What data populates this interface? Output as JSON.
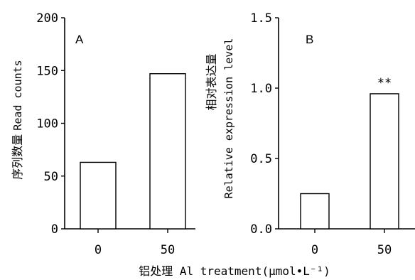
{
  "xlabel": "铝处理 Al treatment(μmol•L⁻¹)",
  "chart_data": [
    {
      "type": "bar",
      "panel": "A",
      "categories": [
        "0",
        "50"
      ],
      "values": [
        63,
        147
      ],
      "ylabel_cn": "序列数量",
      "ylabel": "Read counts",
      "ylim": [
        0,
        200
      ],
      "yticks": [
        "0",
        "50",
        "100",
        "150",
        "200"
      ],
      "annotations": [
        "",
        ""
      ],
      "grid": false
    },
    {
      "type": "bar",
      "panel": "B",
      "categories": [
        "0",
        "50"
      ],
      "values": [
        0.25,
        0.96
      ],
      "ylabel_cn": "相对表达量",
      "ylabel": "Relative expression level",
      "ylim": [
        0,
        1.5
      ],
      "yticks": [
        "0.0",
        "0.5",
        "1.0",
        "1.5"
      ],
      "annotations": [
        "",
        "**"
      ],
      "grid": false
    }
  ]
}
